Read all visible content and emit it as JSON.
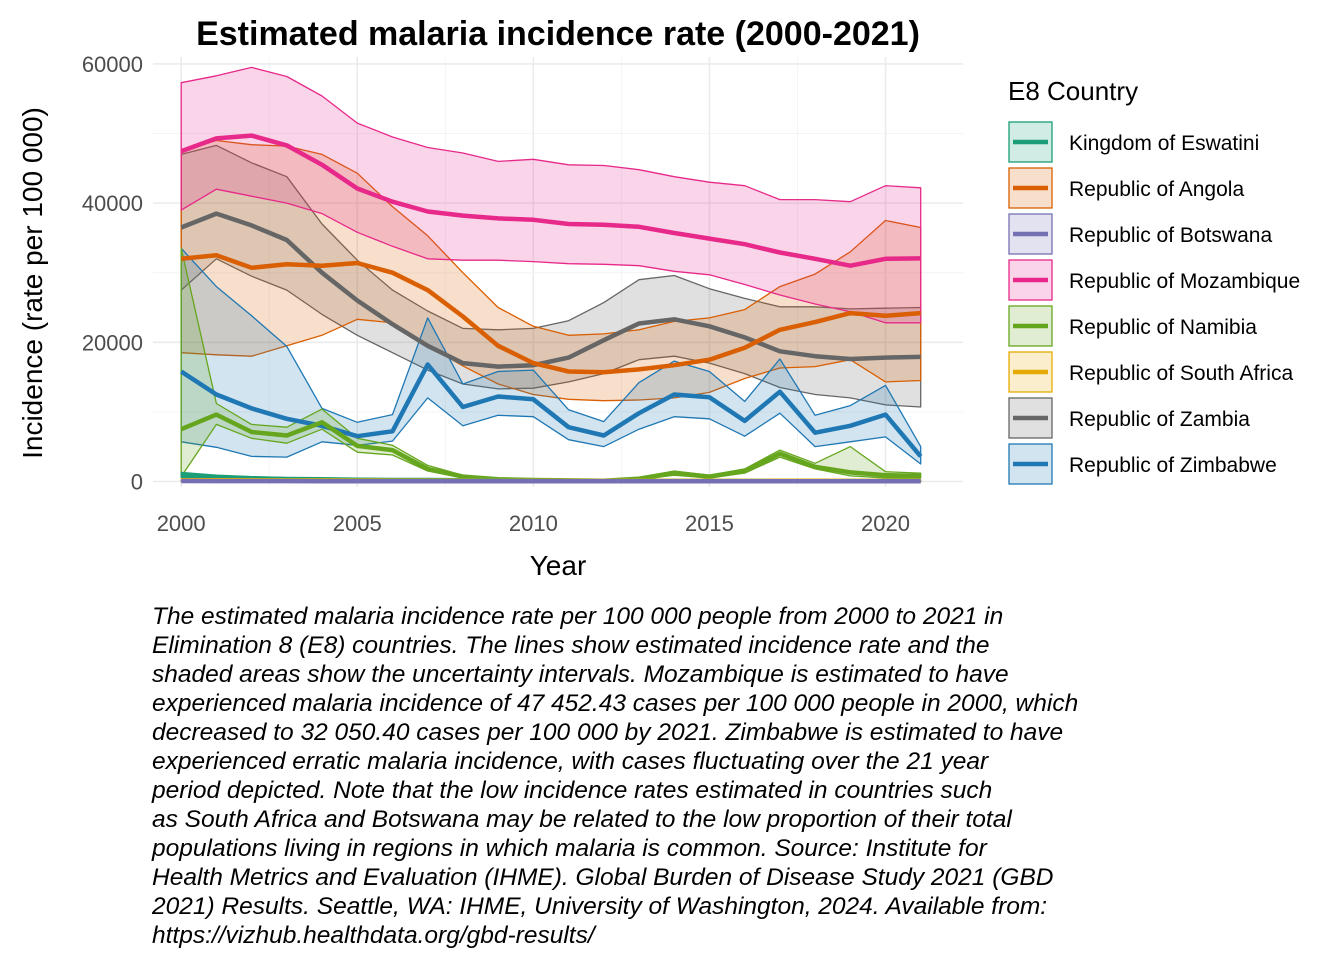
{
  "chart_data": {
    "type": "line",
    "title": "Estimated malaria incidence rate (2000-2021)",
    "xlabel": "Year",
    "ylabel": "Incidence (rate per 100 000)",
    "xlim": [
      1999.2,
      2022.2
    ],
    "ylim": [
      -800,
      61000
    ],
    "x_ticks": [
      2000,
      2005,
      2010,
      2015,
      2020
    ],
    "y_ticks": [
      0,
      20000,
      40000,
      60000
    ],
    "y_tick_labels": [
      "0",
      "20000",
      "40000",
      "60000"
    ],
    "grid": true,
    "legend_title": "E8 Country",
    "legend_position": "right",
    "x": [
      2000,
      2001,
      2002,
      2003,
      2004,
      2005,
      2006,
      2007,
      2008,
      2009,
      2010,
      2011,
      2012,
      2013,
      2014,
      2015,
      2016,
      2017,
      2018,
      2019,
      2020,
      2021
    ],
    "series": [
      {
        "name": "Republic of Zambia",
        "color": "#666666",
        "values": [
          36500,
          38500,
          36800,
          34700,
          30000,
          26000,
          22600,
          19500,
          17000,
          16500,
          16700,
          17800,
          20300,
          22700,
          23300,
          22300,
          20700,
          18700,
          18000,
          17600,
          17800,
          17900
        ],
        "lower": [
          27500,
          32000,
          29500,
          27500,
          24000,
          21000,
          18500,
          16000,
          14000,
          13300,
          13400,
          14300,
          15500,
          17500,
          18000,
          17000,
          15500,
          13500,
          12500,
          12000,
          11000,
          10700
        ],
        "upper": [
          47000,
          48300,
          45800,
          43800,
          37000,
          31800,
          27500,
          24500,
          22000,
          21800,
          22000,
          23100,
          25700,
          29000,
          29600,
          27700,
          26300,
          25100,
          25100,
          24800,
          24900,
          25000
        ]
      },
      {
        "name": "Republic of Angola",
        "color": "#D95F02",
        "values": [
          32000,
          32500,
          30700,
          31200,
          31000,
          31400,
          30000,
          27500,
          23700,
          19500,
          17000,
          15800,
          15700,
          16100,
          16700,
          17500,
          19200,
          21800,
          22900,
          24200,
          23800,
          24200
        ],
        "lower": [
          18500,
          18200,
          18000,
          19500,
          21000,
          23300,
          22800,
          19500,
          16600,
          14000,
          12500,
          11800,
          11600,
          11700,
          12000,
          12800,
          14800,
          16300,
          16500,
          17500,
          14300,
          14500
        ],
        "upper": [
          47500,
          49000,
          48400,
          48200,
          47000,
          44300,
          39500,
          35300,
          30000,
          25000,
          22300,
          21000,
          21200,
          21800,
          23000,
          23500,
          24700,
          28000,
          29800,
          33000,
          37500,
          36500
        ]
      },
      {
        "name": "Republic of Mozambique",
        "color": "#E7298A",
        "values": [
          47452.43,
          49300,
          49700,
          48300,
          45500,
          42100,
          40200,
          38800,
          38200,
          37800,
          37600,
          37000,
          36900,
          36600,
          35700,
          34900,
          34100,
          32900,
          32000,
          31000,
          32000,
          32050.4
        ],
        "lower": [
          39000,
          42000,
          41000,
          40000,
          38500,
          35800,
          33800,
          32000,
          31800,
          31800,
          31600,
          31300,
          31200,
          31000,
          30200,
          29700,
          28300,
          26800,
          25500,
          24400,
          22800,
          22800
        ],
        "upper": [
          57300,
          58300,
          59500,
          58200,
          55400,
          51500,
          49500,
          48000,
          47200,
          46000,
          46300,
          45500,
          45400,
          44800,
          43800,
          43000,
          42500,
          40500,
          40500,
          40200,
          42500,
          42200
        ]
      },
      {
        "name": "Republic of Zimbabwe",
        "color": "#1F78B4",
        "values": [
          15800,
          12500,
          10500,
          9000,
          8000,
          6500,
          7200,
          16800,
          10700,
          12200,
          11800,
          7800,
          6600,
          9800,
          12500,
          12100,
          8700,
          12900,
          7000,
          8000,
          9600,
          3600
        ],
        "lower": [
          5700,
          4900,
          3600,
          3500,
          5700,
          5200,
          5800,
          12000,
          8000,
          9500,
          9300,
          6000,
          5000,
          7500,
          9300,
          9000,
          6500,
          9800,
          5000,
          5700,
          6400,
          2500
        ],
        "upper": [
          33500,
          28000,
          23800,
          19400,
          10500,
          8500,
          9600,
          23500,
          14000,
          15800,
          16000,
          10300,
          8600,
          14200,
          17300,
          15800,
          11500,
          17600,
          9500,
          10900,
          13800,
          5000
        ]
      },
      {
        "name": "Republic of Namibia",
        "color": "#66A61E",
        "values": [
          7500,
          9600,
          7100,
          6600,
          8500,
          5100,
          4500,
          1800,
          700,
          300,
          200,
          150,
          100,
          400,
          1200,
          700,
          1500,
          4000,
          2100,
          1300,
          900,
          800
        ],
        "lower": [
          700,
          8200,
          6200,
          5500,
          7500,
          4200,
          3800,
          1500,
          500,
          200,
          150,
          100,
          50,
          300,
          900,
          500,
          1200,
          3500,
          1800,
          800,
          500,
          500
        ],
        "upper": [
          33500,
          11200,
          8200,
          7800,
          10400,
          6200,
          5200,
          2300,
          900,
          400,
          300,
          200,
          150,
          600,
          1500,
          900,
          1800,
          4500,
          2600,
          5000,
          1400,
          1200
        ]
      },
      {
        "name": "Kingdom of Eswatini",
        "color": "#1B9E77",
        "values": [
          900,
          600,
          450,
          350,
          300,
          250,
          200,
          200,
          180,
          150,
          120,
          100,
          80,
          70,
          60,
          60,
          60,
          60,
          60,
          60,
          60,
          60
        ],
        "lower": [
          600,
          400,
          300,
          250,
          200,
          150,
          150,
          150,
          120,
          100,
          80,
          70,
          50,
          50,
          40,
          40,
          40,
          40,
          40,
          40,
          40,
          40
        ],
        "upper": [
          1300,
          900,
          700,
          550,
          450,
          350,
          300,
          300,
          250,
          200,
          180,
          150,
          120,
          100,
          90,
          90,
          90,
          90,
          90,
          90,
          90,
          90
        ]
      },
      {
        "name": "Republic of South Africa",
        "color": "#E6AB02",
        "values": [
          180,
          160,
          150,
          140,
          130,
          120,
          110,
          100,
          90,
          80,
          80,
          70,
          70,
          70,
          70,
          70,
          70,
          90,
          90,
          80,
          70,
          70
        ],
        "lower": [
          100,
          90,
          80,
          80,
          70,
          60,
          60,
          50,
          50,
          40,
          40,
          40,
          40,
          40,
          40,
          40,
          40,
          50,
          50,
          40,
          40,
          40
        ],
        "upper": [
          300,
          280,
          260,
          240,
          220,
          200,
          190,
          170,
          160,
          150,
          150,
          140,
          140,
          140,
          140,
          140,
          140,
          160,
          160,
          150,
          140,
          140
        ]
      },
      {
        "name": "Republic of Botswana",
        "color": "#7570B3",
        "values": [
          60,
          55,
          50,
          45,
          40,
          35,
          30,
          30,
          25,
          20,
          20,
          18,
          15,
          15,
          15,
          15,
          15,
          15,
          15,
          15,
          15,
          15
        ],
        "lower": [
          30,
          28,
          25,
          22,
          20,
          18,
          15,
          15,
          12,
          10,
          10,
          9,
          8,
          8,
          8,
          8,
          8,
          8,
          8,
          8,
          8,
          8
        ],
        "upper": [
          100,
          95,
          90,
          80,
          70,
          60,
          55,
          50,
          45,
          40,
          35,
          30,
          28,
          28,
          28,
          28,
          28,
          28,
          28,
          28,
          28,
          28
        ]
      }
    ]
  },
  "legend": {
    "title": "E8 Country",
    "items": [
      {
        "name": "Kingdom of Eswatini",
        "color": "#1B9E77"
      },
      {
        "name": "Republic of Angola",
        "color": "#D95F02"
      },
      {
        "name": "Republic of Botswana",
        "color": "#7570B3"
      },
      {
        "name": "Republic of Mozambique",
        "color": "#E7298A"
      },
      {
        "name": "Republic of Namibia",
        "color": "#66A61E"
      },
      {
        "name": "Republic of South Africa",
        "color": "#E6AB02"
      },
      {
        "name": "Republic of Zambia",
        "color": "#666666"
      },
      {
        "name": "Republic of Zimbabwe",
        "color": "#1F78B4"
      }
    ]
  },
  "caption": "The estimated malaria incidence rate per 100 000 people from 2000 to 2021 in\nElimination 8 (E8) countries. The lines show estimated incidence rate and the\nshaded areas show the uncertainty intervals. Mozambique is estimated to have\nexperienced malaria incidence of 47 452.43 cases per 100 000 people in 2000, which\ndecreased to 32 050.40 cases per 100 000 by 2021. Zimbabwe is estimated to have\nexperienced erratic malaria incidence, with cases fluctuating over the 21 year\nperiod depicted. Note that the low incidence rates estimated in countries such\nas South Africa and Botswana may be related to the low proportion of their total\npopulations living in regions in which malaria is common. Source: Institute for\nHealth Metrics and Evaluation (IHME). Global Burden of Disease Study 2021 (GBD\n2021) Results. Seattle, WA: IHME, University of Washington, 2024. Available from:\nhttps://vizhub.healthdata.org/gbd-results/"
}
